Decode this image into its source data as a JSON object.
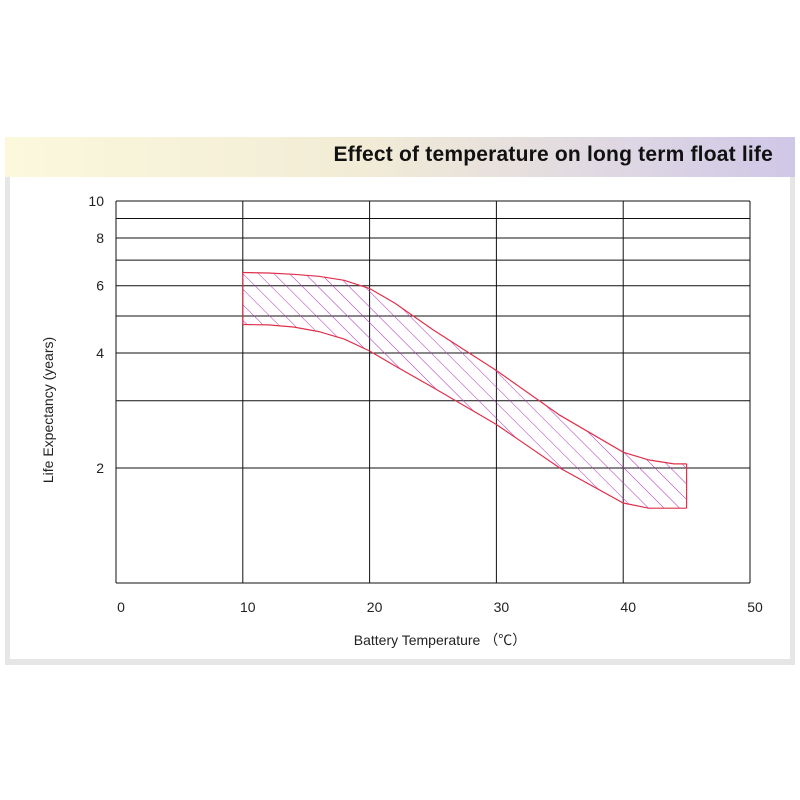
{
  "chart_data": {
    "type": "area",
    "title": "Effect of temperature on long term float life",
    "xlabel": "Battery Temperature  （℃）",
    "ylabel": "Life Expectancy (years)",
    "xlim": [
      0,
      50
    ],
    "ylim": [
      1,
      10
    ],
    "y_scale": "log",
    "x_ticks": [
      "0",
      "10",
      "20",
      "30",
      "40",
      "50"
    ],
    "y_ticks": [
      "2",
      "4",
      "6",
      "8",
      "10"
    ],
    "grid": true,
    "fill_pattern": "diagonal-hatch",
    "colors": {
      "band_edge": "#e0304a",
      "hatch": "#b02fb8",
      "grid": "#111111"
    },
    "series": [
      {
        "name": "upper bound",
        "x": [
          10,
          12,
          14,
          16,
          18,
          20,
          22,
          25,
          30,
          35,
          40,
          42,
          44,
          45
        ],
        "y": [
          6.5,
          6.48,
          6.43,
          6.35,
          6.2,
          5.9,
          5.4,
          4.6,
          3.6,
          2.75,
          2.2,
          2.1,
          2.05,
          2.05
        ]
      },
      {
        "name": "lower bound",
        "x": [
          10,
          12,
          14,
          16,
          18,
          20,
          22,
          25,
          30,
          35,
          40,
          42,
          44,
          45
        ],
        "y": [
          4.75,
          4.74,
          4.68,
          4.55,
          4.35,
          4.05,
          3.7,
          3.25,
          2.6,
          2.0,
          1.62,
          1.57,
          1.57,
          1.57
        ]
      }
    ]
  }
}
